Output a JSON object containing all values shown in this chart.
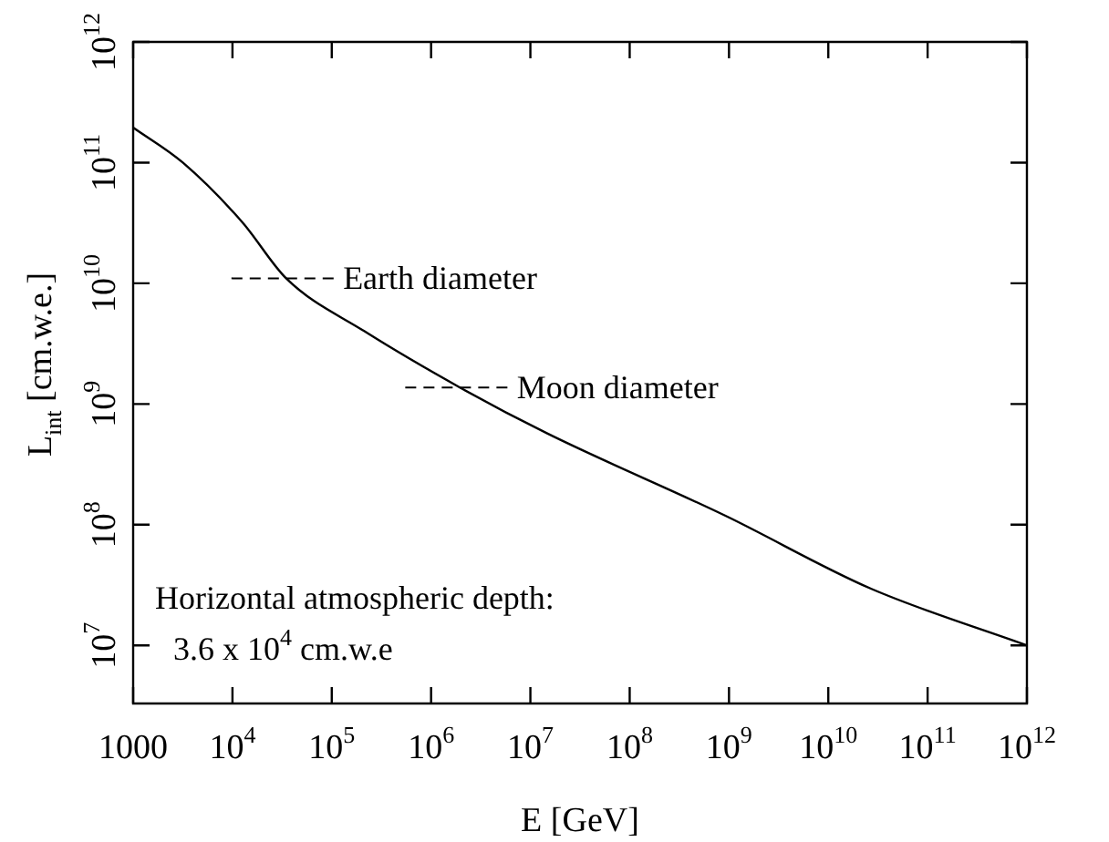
{
  "chart_data": {
    "type": "line",
    "xlabel": "E [GeV]",
    "ylabel": "L$_{int}$ [cm.w.e.]",
    "x": [
      1000,
      3162,
      12590,
      34670,
      213800,
      1950000,
      14790000,
      912000000,
      26900000000,
      1000000000000
    ],
    "series": [
      {
        "color": "#000000",
        "values": [
          195000000000,
          100000000000,
          32000000000,
          11000000000,
          4000000000,
          1370000000,
          570000000,
          119000000,
          29500000,
          10000000
        ]
      }
    ],
    "log": "xy",
    "xlim": [
      1000,
      1000000000000
    ],
    "ylim": [
      3300000,
      1000000000000
    ],
    "xticks": [
      1000,
      {
        "value": 10000,
        "label": "10$^{4}$"
      },
      {
        "value": 100000,
        "label": "10$^{5}$"
      },
      {
        "value": 1000000,
        "label": "10$^{6}$"
      },
      {
        "value": 10000000,
        "label": "10$^{7}$"
      },
      {
        "value": 100000000,
        "label": "10$^{8}$"
      },
      {
        "value": 1000000000,
        "label": "10$^{9}$"
      },
      {
        "value": 10000000000,
        "label": "10$^{10}$"
      },
      {
        "value": 100000000000,
        "label": "10$^{11}$"
      },
      {
        "value": 1000000000000,
        "label": "10$^{12}$"
      }
    ],
    "yticks": [
      {
        "value": 10000000,
        "label": "10$^{7}$"
      },
      {
        "value": 100000000,
        "label": "10$^{8}$"
      },
      {
        "value": 1000000000,
        "label": "10$^{9}$"
      },
      {
        "value": 10000000000,
        "label": "10$^{10}$"
      },
      {
        "value": 100000000000,
        "label": "10$^{11}$"
      },
      {
        "value": 1000000000000,
        "label": "10$^{12}$"
      }
    ],
    "ref_lines": [
      {
        "axis": "y",
        "value": 11000000000,
        "label": "Earth diameter",
        "line_style": "dashed"
      },
      {
        "axis": "y",
        "value": 1370000000,
        "label": "Moon diameter",
        "line_style": "dashed"
      }
    ],
    "annotations": [
      "Horizontal atmospheric depth:",
      "3.6 x 10$^{4}$ cm.w.e"
    ],
    "grid": false,
    "legend": false,
    "marker": "none",
    "line_style": "solid"
  }
}
